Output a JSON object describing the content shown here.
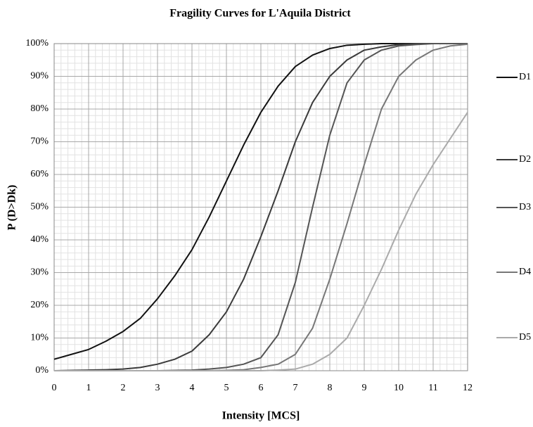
{
  "chart_data": {
    "type": "line",
    "title": "Fragility Curves for L'Aquila District",
    "xlabel": "Intensity [MCS]",
    "ylabel": "P (D>Dk)",
    "x": [
      0,
      0.5,
      1,
      1.5,
      2,
      2.5,
      3,
      3.5,
      4,
      4.5,
      5,
      5.5,
      6,
      6.5,
      7,
      7.5,
      8,
      8.5,
      9,
      9.5,
      10,
      10.5,
      11,
      11.5,
      12
    ],
    "series": [
      {
        "name": "D1",
        "color": "#111111",
        "values": [
          3.5,
          5,
          6.5,
          9,
          12,
          16,
          22,
          29,
          37,
          47,
          58,
          69,
          79,
          87,
          93,
          96.5,
          98.5,
          99.5,
          99.8,
          100,
          100,
          100,
          100,
          100,
          100
        ]
      },
      {
        "name": "D2",
        "color": "#3a3a3a",
        "values": [
          0,
          0.1,
          0.2,
          0.3,
          0.5,
          1,
          2,
          3.5,
          6,
          11,
          18,
          28,
          41,
          55,
          70,
          82,
          90,
          95,
          98,
          99,
          99.7,
          100,
          100,
          100,
          100
        ]
      },
      {
        "name": "D3",
        "color": "#555555",
        "values": [
          0,
          0,
          0,
          0,
          0,
          0,
          0,
          0.1,
          0.2,
          0.5,
          1,
          2,
          4,
          11,
          27,
          50,
          72,
          88,
          95,
          98,
          99.3,
          99.7,
          100,
          100,
          100
        ]
      },
      {
        "name": "D4",
        "color": "#777777",
        "values": [
          0,
          0,
          0,
          0,
          0,
          0,
          0,
          0,
          0,
          0,
          0.1,
          0.3,
          1,
          2,
          5,
          13,
          28,
          45,
          63,
          80,
          90,
          95,
          98,
          99.3,
          99.8
        ]
      },
      {
        "name": "D5",
        "color": "#aaaaaa",
        "values": [
          0,
          0,
          0,
          0,
          0,
          0,
          0,
          0,
          0,
          0,
          0,
          0,
          0,
          0.2,
          0.5,
          2,
          5,
          10,
          20,
          31,
          43,
          54,
          63,
          71,
          79
        ]
      }
    ],
    "xlim": [
      0,
      12
    ],
    "xticks": [
      0,
      1,
      2,
      3,
      4,
      5,
      6,
      7,
      8,
      9,
      10,
      11,
      12
    ],
    "ylim": [
      0,
      100
    ],
    "yticks": [
      {
        "value": 0,
        "label": "0%"
      },
      {
        "value": 10,
        "label": "10%"
      },
      {
        "value": 20,
        "label": "20%"
      },
      {
        "value": 30,
        "label": "30%"
      },
      {
        "value": 40,
        "label": "40%"
      },
      {
        "value": 50,
        "label": "50%"
      },
      {
        "value": 60,
        "label": "60%"
      },
      {
        "value": 70,
        "label": "70%"
      },
      {
        "value": 80,
        "label": "80%"
      },
      {
        "value": 90,
        "label": "90%"
      },
      {
        "value": 100,
        "label": "100%"
      }
    ],
    "grid": true,
    "legend": "right"
  }
}
